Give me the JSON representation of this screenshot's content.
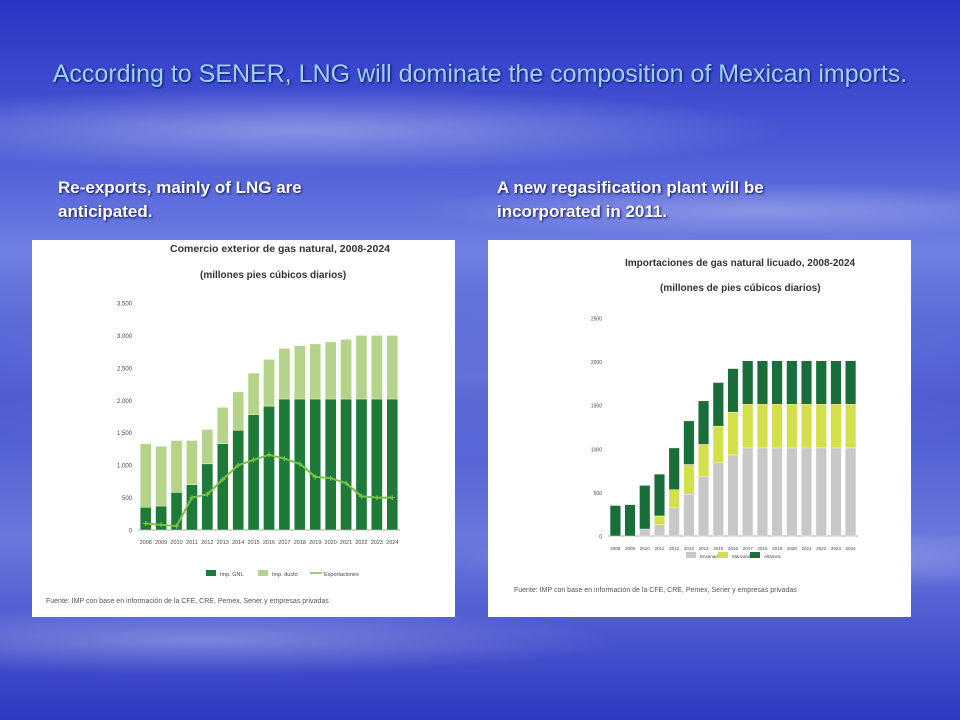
{
  "slide": {
    "title": "According to SENER, LNG will dominate the composition of Mexican imports.",
    "left_caption": "Re-exports, mainly of LNG are anticipated.",
    "right_caption": "A new regasification plant will be incorporated in 2011."
  },
  "chart_data": [
    {
      "type": "bar",
      "title": "Comercio exterior de gas natural, 2008-2024",
      "subtitle": "(millones pies cúbicos diarios)",
      "source": "Fuente: IMP con base en información de la CFE, CRE, Pemex, Sener y empresas privadas",
      "categories": [
        "2008",
        "2009",
        "2010",
        "2011",
        "2012",
        "2013",
        "2014",
        "2015",
        "2016",
        "2017",
        "2018",
        "2019",
        "2020",
        "2021",
        "2022",
        "2023",
        "2024"
      ],
      "stacked": true,
      "ylim": [
        0,
        3500
      ],
      "yticks": [
        0,
        500,
        1000,
        1500,
        2000,
        2500,
        3000,
        3500
      ],
      "ytick_labels": [
        "0",
        "500",
        "1,000",
        "1,500",
        "2,000",
        "2,500",
        "3,000",
        "3,500"
      ],
      "legend_position": "bottom",
      "series": [
        {
          "name": "Imp. GNL",
          "kind": "bar",
          "color": "#1f7a3a",
          "values": [
            350,
            370,
            580,
            700,
            1020,
            1330,
            1540,
            1780,
            1910,
            2020,
            2020,
            2020,
            2020,
            2020,
            2020,
            2020,
            2020
          ]
        },
        {
          "name": "Imp. ducto",
          "kind": "bar",
          "color": "#b5d48a",
          "values": [
            980,
            920,
            800,
            680,
            530,
            560,
            590,
            640,
            720,
            780,
            820,
            850,
            880,
            920,
            980,
            980,
            980
          ]
        },
        {
          "name": "Exportaciones",
          "kind": "line",
          "color": "#7cc04a",
          "values": [
            100,
            80,
            60,
            500,
            550,
            780,
            1000,
            1080,
            1160,
            1100,
            1020,
            820,
            800,
            720,
            520,
            500,
            500
          ]
        }
      ]
    },
    {
      "type": "bar",
      "title": "Importaciones de gas natural licuado, 2008-2024",
      "subtitle": "(millones de pies cúbicos diarios)",
      "source": "Fuente: IMP con base en información de la CFE, CRE, Pemex, Sener y empresas privadas",
      "categories": [
        "2008",
        "2009",
        "2010",
        "2011",
        "2012",
        "2013",
        "2014",
        "2015",
        "2016",
        "2017",
        "2018",
        "2019",
        "2020",
        "2021",
        "2022",
        "2023",
        "2024"
      ],
      "stacked": true,
      "ylim": [
        0,
        2500
      ],
      "yticks": [
        0,
        500,
        1000,
        1500,
        2000,
        2500
      ],
      "ytick_labels": [
        "0",
        "500",
        "1000",
        "1500",
        "2000",
        "2500"
      ],
      "legend_position": "bottom",
      "series": [
        {
          "name": "Ensenada",
          "kind": "bar",
          "color": "#c8c8c8",
          "values": [
            0,
            0,
            80,
            130,
            330,
            480,
            680,
            840,
            930,
            1010,
            1010,
            1010,
            1010,
            1010,
            1010,
            1010,
            1010
          ]
        },
        {
          "name": "Manzanillo",
          "kind": "bar",
          "color": "#d4e04a",
          "values": [
            0,
            0,
            0,
            100,
            200,
            340,
            370,
            420,
            490,
            500,
            500,
            500,
            500,
            500,
            500,
            500,
            500
          ]
        },
        {
          "name": "Altamira",
          "kind": "bar",
          "color": "#1a6e3a",
          "values": [
            350,
            360,
            500,
            480,
            480,
            500,
            500,
            500,
            500,
            500,
            500,
            500,
            500,
            500,
            500,
            500,
            500
          ]
        }
      ]
    }
  ]
}
